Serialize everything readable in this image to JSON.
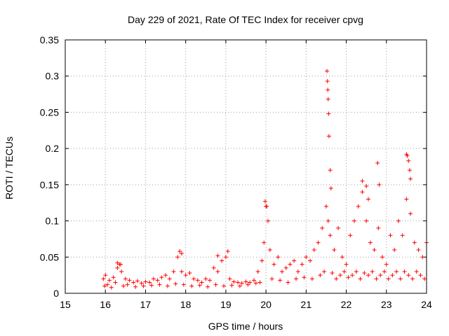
{
  "chart_data": {
    "type": "scatter",
    "title": "Day 229 of 2021, Rate Of TEC Index for receiver cpvg",
    "xlabel": "GPS time / hours",
    "ylabel": "ROTI / TECUs",
    "xlim": [
      15,
      24
    ],
    "ylim": [
      0,
      0.35
    ],
    "grid": true,
    "marker": "+",
    "color": "#ff0000",
    "x_ticks": [
      15,
      16,
      17,
      18,
      19,
      20,
      21,
      22,
      23,
      24
    ],
    "x_tick_labels": [
      "15",
      "16",
      "17",
      "18",
      "19",
      "20",
      "21",
      "22",
      "23",
      "24"
    ],
    "y_ticks": [
      0,
      0.05,
      0.1,
      0.15,
      0.2,
      0.25,
      0.3,
      0.35
    ],
    "y_tick_labels": [
      "0",
      "0.05",
      "0.1",
      "0.15",
      "0.2",
      "0.25",
      "0.3",
      "0.35"
    ],
    "series": [
      {
        "name": "ROTI",
        "x": [
          15.95,
          16.0,
          16.1,
          16.2,
          16.3,
          16.35,
          16.4,
          16.5,
          16.6,
          16.7,
          16.8,
          16.9,
          17.0,
          17.1,
          17.2,
          17.3,
          17.4,
          17.5,
          17.6,
          17.7,
          17.8,
          17.9,
          18.0,
          18.1,
          18.2,
          18.3,
          18.4,
          18.5,
          18.6,
          18.7,
          18.8,
          18.9,
          19.0,
          19.1,
          19.2,
          19.3,
          19.4,
          19.5,
          19.6,
          19.7,
          19.8,
          19.9,
          19.95,
          20.0,
          20.05,
          20.1,
          20.2,
          20.3,
          20.4,
          20.5,
          20.6,
          20.7,
          20.8,
          20.9,
          21.0,
          21.1,
          21.2,
          21.3,
          21.4,
          21.5,
          21.55,
          21.6,
          21.7,
          21.8,
          21.9,
          22.0,
          22.1,
          22.2,
          22.3,
          22.4,
          22.5,
          22.6,
          22.7,
          22.8,
          22.9,
          23.0,
          23.1,
          23.2,
          23.3,
          23.4,
          23.5,
          23.6,
          23.7,
          23.8,
          23.9,
          24.0,
          15.98,
          16.05,
          16.15,
          16.25,
          16.45,
          16.55,
          16.75,
          16.95,
          17.15,
          17.35,
          17.55,
          17.75,
          17.95,
          18.15,
          18.35,
          18.55,
          18.75,
          18.95,
          19.15,
          19.35,
          19.55,
          19.75,
          19.85,
          20.15,
          20.35,
          20.55,
          20.75,
          20.95,
          21.15,
          21.35,
          21.45,
          21.65,
          21.75,
          21.85,
          21.95,
          22.05,
          22.15,
          22.25,
          22.35,
          22.45,
          22.55,
          22.65,
          22.75,
          22.85,
          22.95,
          23.05,
          23.15,
          23.25,
          23.35,
          23.45,
          23.55,
          23.65,
          23.75,
          23.85,
          23.95,
          21.52,
          21.53,
          21.54,
          21.55,
          21.56,
          21.57,
          21.6,
          21.62,
          22.4,
          22.5,
          22.55,
          22.78,
          22.82,
          23.5,
          23.52,
          23.55,
          23.58,
          23.6,
          19.98,
          20.02,
          17.85,
          17.9,
          16.3,
          16.38,
          19.05,
          18.8
        ],
        "y": [
          0.02,
          0.025,
          0.018,
          0.022,
          0.035,
          0.04,
          0.03,
          0.02,
          0.018,
          0.015,
          0.017,
          0.014,
          0.016,
          0.015,
          0.02,
          0.018,
          0.022,
          0.025,
          0.02,
          0.03,
          0.05,
          0.03,
          0.025,
          0.028,
          0.02,
          0.018,
          0.015,
          0.02,
          0.018,
          0.035,
          0.03,
          0.045,
          0.05,
          0.02,
          0.016,
          0.015,
          0.014,
          0.016,
          0.015,
          0.018,
          0.03,
          0.045,
          0.07,
          0.12,
          0.1,
          0.06,
          0.04,
          0.05,
          0.03,
          0.035,
          0.04,
          0.045,
          0.03,
          0.04,
          0.05,
          0.045,
          0.06,
          0.07,
          0.09,
          0.12,
          0.1,
          0.08,
          0.06,
          0.09,
          0.05,
          0.04,
          0.08,
          0.1,
          0.12,
          0.14,
          0.1,
          0.07,
          0.06,
          0.09,
          0.05,
          0.04,
          0.08,
          0.06,
          0.1,
          0.08,
          0.13,
          0.11,
          0.07,
          0.06,
          0.05,
          0.07,
          0.01,
          0.012,
          0.008,
          0.015,
          0.01,
          0.012,
          0.009,
          0.01,
          0.011,
          0.012,
          0.01,
          0.013,
          0.012,
          0.01,
          0.011,
          0.009,
          0.012,
          0.01,
          0.011,
          0.01,
          0.012,
          0.014,
          0.015,
          0.02,
          0.018,
          0.015,
          0.02,
          0.022,
          0.02,
          0.025,
          0.03,
          0.028,
          0.02,
          0.025,
          0.03,
          0.022,
          0.025,
          0.03,
          0.02,
          0.028,
          0.025,
          0.03,
          0.02,
          0.025,
          0.03,
          0.02,
          0.025,
          0.03,
          0.02,
          0.03,
          0.025,
          0.02,
          0.03,
          0.025,
          0.02,
          0.307,
          0.293,
          0.281,
          0.268,
          0.248,
          0.217,
          0.17,
          0.145,
          0.155,
          0.148,
          0.13,
          0.18,
          0.15,
          0.192,
          0.19,
          0.183,
          0.17,
          0.158,
          0.127,
          0.12,
          0.058,
          0.055,
          0.042,
          0.04,
          0.058,
          0.052
        ]
      }
    ]
  }
}
